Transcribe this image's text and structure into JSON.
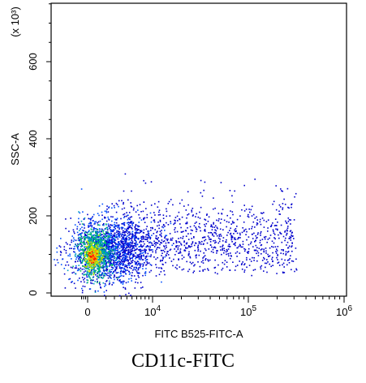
{
  "chart_data": {
    "type": "scatter",
    "subtype": "flow-cytometry-density-dot-plot",
    "xlabel": "FITC B525-FITC-A",
    "ylabel": "SSC-A",
    "y_multiplier_label": "(x 10³)",
    "x_scale": "biexponential",
    "x_ticks": [
      {
        "value": 0,
        "label": "0"
      },
      {
        "value": 10000,
        "label": "10",
        "exp": "4"
      },
      {
        "value": 100000,
        "label": "10",
        "exp": "5"
      },
      {
        "value": 1000000,
        "label": "10",
        "exp": "6"
      }
    ],
    "y_ticks": [
      {
        "value": 0,
        "label": "0"
      },
      {
        "value": 200,
        "label": "200"
      },
      {
        "value": 400,
        "label": "400"
      },
      {
        "value": 600,
        "label": "600"
      }
    ],
    "ylim": [
      0,
      760
    ],
    "clusters": [
      {
        "name": "dense core",
        "x_center": 200,
        "y_center": 95,
        "density": "high",
        "color": "#e8e800"
      },
      {
        "name": "main population",
        "x_center": 800,
        "y_center": 120,
        "density": "medium",
        "color": "#00a0c0"
      },
      {
        "name": "diffuse tail",
        "x_range": [
          3000,
          300000
        ],
        "y_range": [
          60,
          300
        ],
        "density": "low",
        "color": "#0000cc"
      }
    ],
    "density_colors": [
      "#0000cc",
      "#0050ff",
      "#00a0c0",
      "#00c060",
      "#a8e000",
      "#e8e800",
      "#ff9900",
      "#ff0000"
    ]
  },
  "caption": "CD11c-FITC"
}
